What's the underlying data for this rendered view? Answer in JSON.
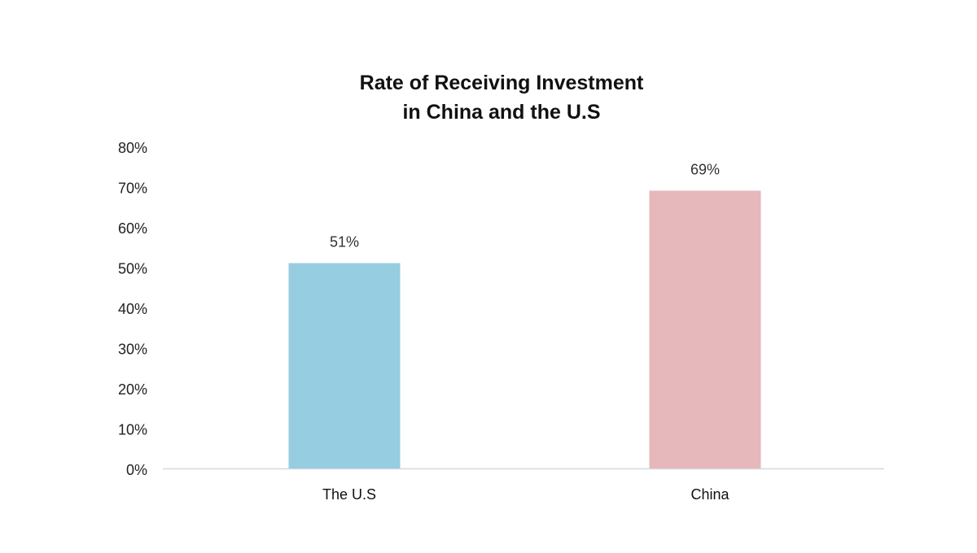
{
  "chart_data": {
    "type": "bar",
    "title": "Rate of Receiving Investment\nin China and the U.S",
    "title_lines": [
      "Rate of Receiving Investment",
      "in China and the U.S"
    ],
    "xlabel": "",
    "ylabel": "",
    "categories": [
      "The U.S",
      "China"
    ],
    "values": [
      51,
      69
    ],
    "value_labels": [
      "51%",
      "69%"
    ],
    "bar_colors": [
      "#97cde0",
      "#e6b8bb"
    ],
    "ylim": [
      0,
      80
    ],
    "y_ticks": [
      0,
      10,
      20,
      30,
      40,
      50,
      60,
      70,
      80
    ],
    "y_tick_labels": [
      "0%",
      "10%",
      "20%",
      "30%",
      "40%",
      "50%",
      "60%",
      "70%",
      "80%"
    ],
    "grid": false,
    "legend": "none"
  }
}
